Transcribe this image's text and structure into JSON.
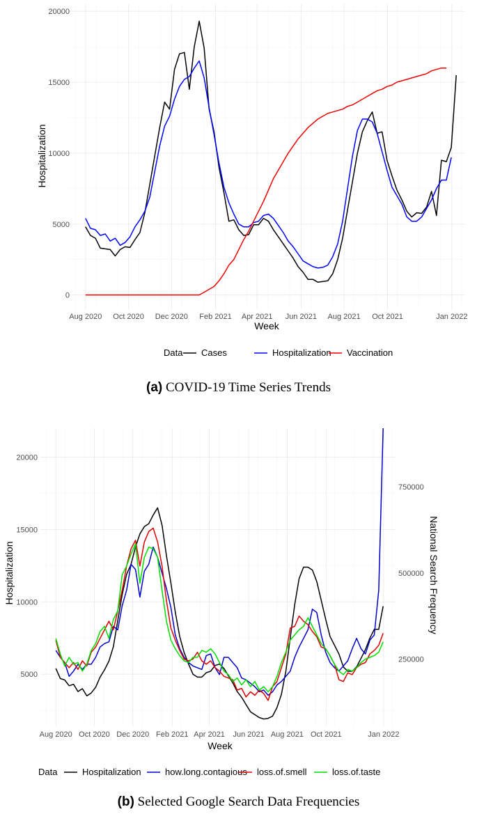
{
  "chart_data": [
    {
      "type": "line",
      "x_ticks": [
        {
          "label": "Aug 2020",
          "w": 0
        },
        {
          "label": "Oct 2020",
          "w": 8.7
        },
        {
          "label": "Dec 2020",
          "w": 17.4
        },
        {
          "label": "Feb 2021",
          "w": 26.3
        },
        {
          "label": "Apr 2021",
          "w": 34.7
        },
        {
          "label": "Jun 2021",
          "w": 43.6
        },
        {
          "label": "Aug 2021",
          "w": 52.3
        },
        {
          "label": "Oct 2021",
          "w": 61.1
        },
        {
          "label": "Jan 2022",
          "w": 74.1
        }
      ],
      "xlim": [
        -3.5,
        76.8
      ],
      "y_ticks": [
        0,
        5000,
        10000,
        15000,
        20000
      ],
      "ylim": [
        -1000,
        20500
      ],
      "xlabel": "Week",
      "ylabel": "Hospitalization",
      "grid": true,
      "legend": {
        "title": "Data",
        "position": "bottom"
      },
      "series": [
        {
          "name": "Cases",
          "color": "#000000",
          "values": [
            4800,
            4200,
            4000,
            3300,
            3250,
            3200,
            2750,
            3200,
            3400,
            3350,
            3900,
            4400,
            5800,
            7800,
            9800,
            11800,
            13600,
            13100,
            15900,
            17000,
            17100,
            14500,
            17500,
            19300,
            17400,
            13100,
            11500,
            9000,
            7200,
            5200,
            5300,
            4600,
            4200,
            4250,
            4950,
            4950,
            5400,
            5200,
            4600,
            4100,
            3600,
            3100,
            2600,
            2000,
            1600,
            1100,
            1100,
            900,
            950,
            1000,
            1500,
            2500,
            4000,
            6000,
            8000,
            10000,
            11500,
            12300,
            12900,
            11400,
            11500,
            9500,
            8400,
            7400,
            6700,
            5900,
            5500,
            5800,
            5750,
            6200,
            7300,
            5600,
            9500,
            9400,
            10400,
            15500
          ]
        },
        {
          "name": "Hospitalization",
          "color": "#0000ff",
          "values": [
            5400,
            4700,
            4600,
            4200,
            4300,
            3800,
            4000,
            3500,
            3700,
            4100,
            4800,
            5300,
            5900,
            6900,
            8700,
            10500,
            11900,
            12600,
            13800,
            14700,
            15200,
            15400,
            16000,
            16500,
            15300,
            13200,
            11300,
            9300,
            7600,
            6500,
            5700,
            5000,
            4800,
            4800,
            5100,
            5200,
            5600,
            5700,
            5400,
            4900,
            4400,
            3800,
            3400,
            2900,
            2400,
            2200,
            2000,
            1900,
            1950,
            2100,
            2700,
            3600,
            5200,
            7500,
            9800,
            11600,
            12400,
            12400,
            12200,
            11400,
            10100,
            8800,
            7600,
            7000,
            6400,
            5500,
            5200,
            5200,
            5500,
            6100,
            6700,
            7500,
            8100,
            8100,
            9700
          ]
        },
        {
          "name": "Vaccination",
          "color": "#ee0000",
          "values": [
            0,
            0,
            0,
            0,
            0,
            0,
            0,
            0,
            0,
            0,
            0,
            0,
            0,
            0,
            0,
            0,
            0,
            0,
            0,
            0,
            0,
            0,
            0,
            0,
            200,
            400,
            600,
            1000,
            1500,
            2100,
            2500,
            3200,
            3900,
            4500,
            5200,
            5900,
            6600,
            7400,
            8200,
            8800,
            9400,
            10000,
            10500,
            11000,
            11400,
            11800,
            12100,
            12400,
            12600,
            12800,
            12900,
            13000,
            13100,
            13300,
            13400,
            13600,
            13800,
            14000,
            14200,
            14400,
            14500,
            14700,
            14800,
            15000,
            15100,
            15200,
            15300,
            15400,
            15500,
            15600,
            15800,
            15900,
            16000,
            16000
          ]
        }
      ]
    },
    {
      "type": "line",
      "x_ticks": [
        {
          "label": "Aug 2020",
          "w": 0
        },
        {
          "label": "Oct 2020",
          "w": 8.7
        },
        {
          "label": "Dec 2020",
          "w": 17.4
        },
        {
          "label": "Feb 2021",
          "w": 26.3
        },
        {
          "label": "Apr 2021",
          "w": 34.7
        },
        {
          "label": "Jun 2021",
          "w": 43.6
        },
        {
          "label": "Aug 2021",
          "w": 52.3
        },
        {
          "label": "Oct 2021",
          "w": 61.1
        },
        {
          "label": "Jan 2022",
          "w": 74.1
        }
      ],
      "xlim": [
        -3.5,
        76.8
      ],
      "y_ticks": [
        5000,
        10000,
        15000,
        20000
      ],
      "ylim": [
        1400,
        22000
      ],
      "y2_ticks": [
        {
          "label": "250000",
          "value": 250000
        },
        {
          "label": "500000",
          "value": 500000
        },
        {
          "label": "750000",
          "value": 750000
        }
      ],
      "y2lim": [
        55000,
        920000
      ],
      "xlabel": "Week",
      "ylabel": "Hospitalization",
      "y2label": "National Search Frequency",
      "grid": true,
      "legend": {
        "title": "Data",
        "position": "bottom"
      },
      "series": [
        {
          "name": "Hospitalization",
          "color": "#000000",
          "axis": "left",
          "values": [
            5400,
            4700,
            4600,
            4200,
            4300,
            3800,
            4000,
            3500,
            3700,
            4100,
            4800,
            5300,
            5900,
            6900,
            8700,
            10500,
            11900,
            12600,
            13800,
            14700,
            15200,
            15400,
            16000,
            16500,
            15300,
            13200,
            11300,
            9300,
            7600,
            6500,
            5700,
            5000,
            4800,
            4800,
            5100,
            5200,
            5600,
            5700,
            5400,
            4900,
            4400,
            3800,
            3400,
            2900,
            2400,
            2200,
            2000,
            1900,
            1950,
            2100,
            2700,
            3600,
            5200,
            7500,
            9800,
            11600,
            12400,
            12400,
            12200,
            11400,
            10100,
            8800,
            7600,
            7000,
            6400,
            5500,
            5200,
            5200,
            5500,
            6100,
            6700,
            7500,
            8100,
            8100,
            9700
          ]
        },
        {
          "name": "how.long.contagious",
          "color": "#0000cc",
          "axis": "right",
          "values": [
            275000,
            255000,
            240000,
            200000,
            215000,
            235000,
            220000,
            235000,
            235000,
            255000,
            285000,
            295000,
            300000,
            345000,
            335000,
            405000,
            450000,
            525000,
            510000,
            430000,
            505000,
            525000,
            575000,
            545000,
            500000,
            455000,
            400000,
            320000,
            280000,
            255000,
            240000,
            230000,
            225000,
            220000,
            260000,
            265000,
            225000,
            205000,
            255000,
            255000,
            240000,
            225000,
            195000,
            190000,
            180000,
            170000,
            155000,
            160000,
            145000,
            155000,
            175000,
            185000,
            200000,
            215000,
            255000,
            285000,
            310000,
            335000,
            395000,
            385000,
            320000,
            270000,
            240000,
            225000,
            215000,
            230000,
            245000,
            280000,
            310000,
            280000,
            265000,
            305000,
            320000,
            450000,
            920000
          ]
        },
        {
          "name": "loss.of.smell",
          "color": "#dd0000",
          "axis": "right",
          "values": [
            305000,
            255000,
            240000,
            225000,
            240000,
            220000,
            245000,
            230000,
            270000,
            285000,
            310000,
            335000,
            360000,
            335000,
            390000,
            450000,
            520000,
            570000,
            595000,
            520000,
            590000,
            620000,
            630000,
            590000,
            520000,
            420000,
            340000,
            305000,
            275000,
            250000,
            245000,
            250000,
            270000,
            245000,
            235000,
            245000,
            225000,
            215000,
            200000,
            195000,
            190000,
            160000,
            165000,
            140000,
            155000,
            145000,
            160000,
            150000,
            130000,
            170000,
            185000,
            225000,
            265000,
            340000,
            345000,
            375000,
            360000,
            350000,
            330000,
            315000,
            285000,
            280000,
            260000,
            235000,
            190000,
            185000,
            210000,
            205000,
            225000,
            235000,
            240000,
            265000,
            275000,
            290000,
            325000
          ]
        },
        {
          "name": "loss.of.taste",
          "color": "#00dd00",
          "axis": "right",
          "values": [
            310000,
            265000,
            230000,
            255000,
            235000,
            240000,
            215000,
            235000,
            275000,
            295000,
            330000,
            345000,
            310000,
            365000,
            390000,
            495000,
            520000,
            555000,
            585000,
            470000,
            545000,
            575000,
            570000,
            545000,
            450000,
            360000,
            305000,
            280000,
            260000,
            245000,
            240000,
            255000,
            255000,
            275000,
            270000,
            280000,
            265000,
            240000,
            215000,
            205000,
            185000,
            195000,
            175000,
            190000,
            170000,
            185000,
            160000,
            170000,
            155000,
            170000,
            200000,
            240000,
            270000,
            305000,
            320000,
            335000,
            345000,
            370000,
            345000,
            320000,
            295000,
            280000,
            260000,
            235000,
            215000,
            205000,
            220000,
            215000,
            225000,
            240000,
            250000,
            255000,
            260000,
            270000,
            300000
          ]
        }
      ]
    }
  ],
  "captions": [
    {
      "label": "(a)",
      "text": "COVID-19 Time Series Trends"
    },
    {
      "label": "(b)",
      "text": "Selected Google Search Data Frequencies"
    }
  ]
}
